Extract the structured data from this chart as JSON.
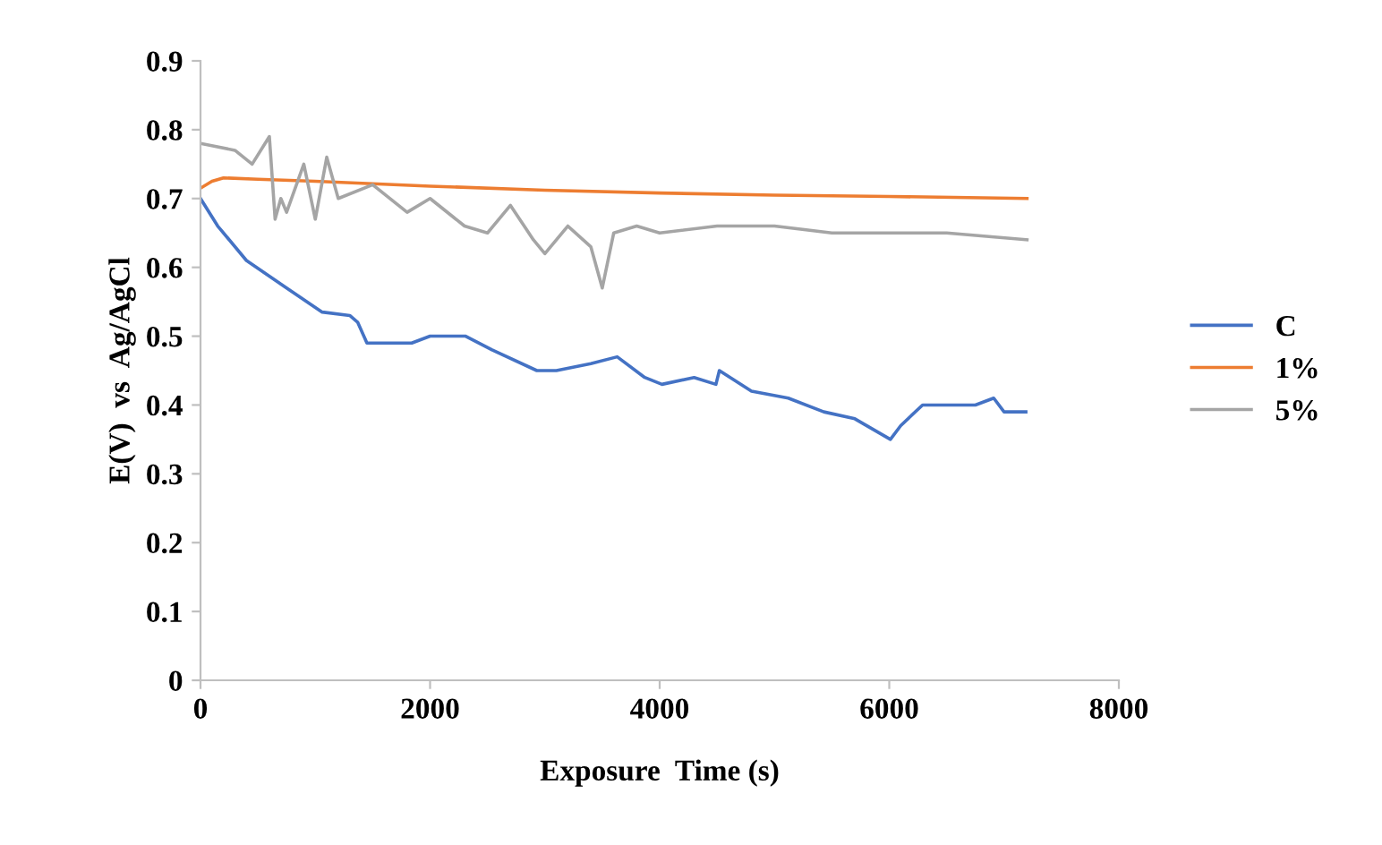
{
  "chart_data": {
    "type": "line",
    "xlabel": "Exposure  Time (s)",
    "ylabel": "E(V)  vs  Ag/AgCl",
    "xlim": [
      0,
      8000
    ],
    "xticks": [
      0,
      2000,
      4000,
      6000,
      8000
    ],
    "ylim": [
      0,
      0.9
    ],
    "yticks": [
      0,
      0.1,
      0.2,
      0.3,
      0.4,
      0.5,
      0.6,
      0.7,
      0.8,
      0.9
    ],
    "grid": false,
    "legend": "right",
    "marker": "none",
    "line_style": "solid",
    "series": [
      {
        "name": "C",
        "color": "#4472c4",
        "x": [
          0,
          150,
          400,
          750,
          1060,
          1300,
          1370,
          1450,
          1840,
          2000,
          2310,
          2540,
          2930,
          3100,
          3400,
          3630,
          3870,
          4020,
          4300,
          4490,
          4520,
          4800,
          5120,
          5430,
          5700,
          6010,
          6100,
          6290,
          6500,
          6750,
          6910,
          7000,
          7190
        ],
        "values": [
          0.7,
          0.66,
          0.61,
          0.57,
          0.535,
          0.53,
          0.52,
          0.49,
          0.49,
          0.5,
          0.5,
          0.48,
          0.45,
          0.45,
          0.46,
          0.47,
          0.44,
          0.43,
          0.44,
          0.43,
          0.45,
          0.42,
          0.41,
          0.39,
          0.38,
          0.35,
          0.37,
          0.4,
          0.4,
          0.4,
          0.41,
          0.39,
          0.39
        ]
      },
      {
        "name": "1%",
        "color": "#ed7d31",
        "x": [
          0,
          100,
          200,
          500,
          1000,
          2000,
          3000,
          4000,
          5000,
          6000,
          7200
        ],
        "values": [
          0.715,
          0.725,
          0.73,
          0.728,
          0.725,
          0.718,
          0.712,
          0.708,
          0.705,
          0.703,
          0.7
        ]
      },
      {
        "name": "5%",
        "color": "#a5a5a5",
        "x": [
          0,
          300,
          450,
          600,
          650,
          700,
          750,
          900,
          1000,
          1100,
          1200,
          1500,
          1800,
          2000,
          2300,
          2500,
          2700,
          2900,
          3000,
          3200,
          3400,
          3500,
          3600,
          3800,
          4000,
          4500,
          5000,
          5500,
          6000,
          6500,
          7200
        ],
        "values": [
          0.78,
          0.77,
          0.75,
          0.79,
          0.67,
          0.7,
          0.68,
          0.75,
          0.67,
          0.76,
          0.7,
          0.72,
          0.68,
          0.7,
          0.66,
          0.65,
          0.69,
          0.64,
          0.62,
          0.66,
          0.63,
          0.57,
          0.65,
          0.66,
          0.65,
          0.66,
          0.66,
          0.65,
          0.65,
          0.65,
          0.64
        ]
      }
    ]
  }
}
